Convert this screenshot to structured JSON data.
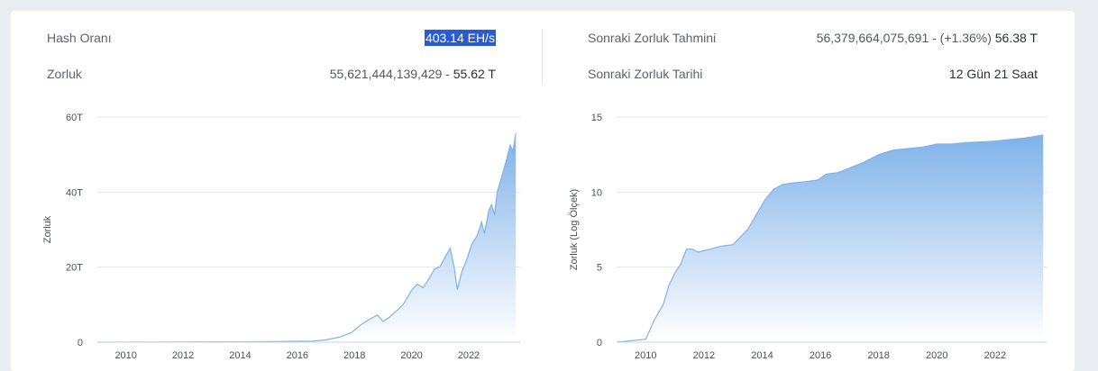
{
  "stats": {
    "hash_rate_label": "Hash Oranı",
    "hash_rate_value": "403.14 EH/s",
    "difficulty_label": "Zorluk",
    "difficulty_full": "55,621,444,139,429",
    "difficulty_sep": " - ",
    "difficulty_short": "55.62 T",
    "next_estimate_label": "Sonraki Zorluk Tahmini",
    "next_estimate_value": "56,379,664,075,691 - (+1.36%)",
    "next_estimate_short": " 56.38 T",
    "next_date_label": "Sonraki Zorluk Tarihi",
    "next_date_value": "12 Gün 21 Saat"
  },
  "colors": {
    "line": "#7fb2e5",
    "fill_top": "#7fb2e8",
    "fill_bottom": "#ffffff",
    "grid": "#e3e6ea"
  },
  "chart_data": [
    {
      "type": "area",
      "ylabel": "Zorluk",
      "xlabel": "",
      "x_ticks": [
        "2010",
        "2012",
        "2014",
        "2016",
        "2018",
        "2020",
        "2022"
      ],
      "y_ticks": [
        "0",
        "20T",
        "40T",
        "60T"
      ],
      "xlim": [
        2009.0,
        2023.8
      ],
      "ylim": [
        0,
        60
      ],
      "grid": true,
      "x": [
        2009.0,
        2014.0,
        2015.5,
        2016.5,
        2017.0,
        2017.5,
        2017.9,
        2018.2,
        2018.5,
        2018.8,
        2019.0,
        2019.2,
        2019.5,
        2019.7,
        2019.9,
        2020.0,
        2020.2,
        2020.4,
        2020.6,
        2020.8,
        2021.0,
        2021.2,
        2021.35,
        2021.5,
        2021.6,
        2021.75,
        2021.95,
        2022.1,
        2022.3,
        2022.45,
        2022.55,
        2022.7,
        2022.8,
        2022.9,
        2023.0,
        2023.15,
        2023.3,
        2023.45,
        2023.55,
        2023.65
      ],
      "values": [
        0,
        0.1,
        0.2,
        0.3,
        0.6,
        1.4,
        2.6,
        4.5,
        6.0,
        7.2,
        5.5,
        6.5,
        8.5,
        10,
        12.5,
        13.8,
        15.5,
        14.5,
        16.8,
        19.5,
        20.2,
        23,
        25,
        19.5,
        14,
        18.5,
        22.5,
        26,
        28.5,
        32,
        29,
        35,
        36.7,
        34,
        40,
        44,
        48,
        52.5,
        51,
        55.6
      ]
    },
    {
      "type": "area",
      "ylabel": "Zorluk (Log Ölçek)",
      "xlabel": "",
      "x_ticks": [
        "2010",
        "2012",
        "2014",
        "2016",
        "2018",
        "2020",
        "2022"
      ],
      "y_ticks": [
        "0",
        "5",
        "10",
        "15"
      ],
      "xlim": [
        2009.0,
        2023.8
      ],
      "ylim": [
        0,
        15
      ],
      "grid": true,
      "x": [
        2009.0,
        2010.0,
        2010.3,
        2010.6,
        2010.8,
        2011.0,
        2011.2,
        2011.4,
        2011.6,
        2011.8,
        2012.2,
        2012.6,
        2013.0,
        2013.5,
        2013.8,
        2014.1,
        2014.4,
        2014.7,
        2015.0,
        2015.5,
        2015.9,
        2016.2,
        2016.6,
        2017.0,
        2017.5,
        2018.0,
        2018.5,
        2019.0,
        2019.5,
        2020.0,
        2020.5,
        2021.0,
        2021.6,
        2022.0,
        2022.5,
        2023.0,
        2023.65
      ],
      "values": [
        0.0,
        0.2,
        1.5,
        2.5,
        3.8,
        4.6,
        5.2,
        6.2,
        6.2,
        6.0,
        6.2,
        6.4,
        6.5,
        7.5,
        8.5,
        9.5,
        10.2,
        10.5,
        10.6,
        10.7,
        10.8,
        11.2,
        11.3,
        11.6,
        12.0,
        12.5,
        12.8,
        12.9,
        13.0,
        13.2,
        13.2,
        13.3,
        13.35,
        13.4,
        13.5,
        13.6,
        13.8
      ]
    }
  ]
}
